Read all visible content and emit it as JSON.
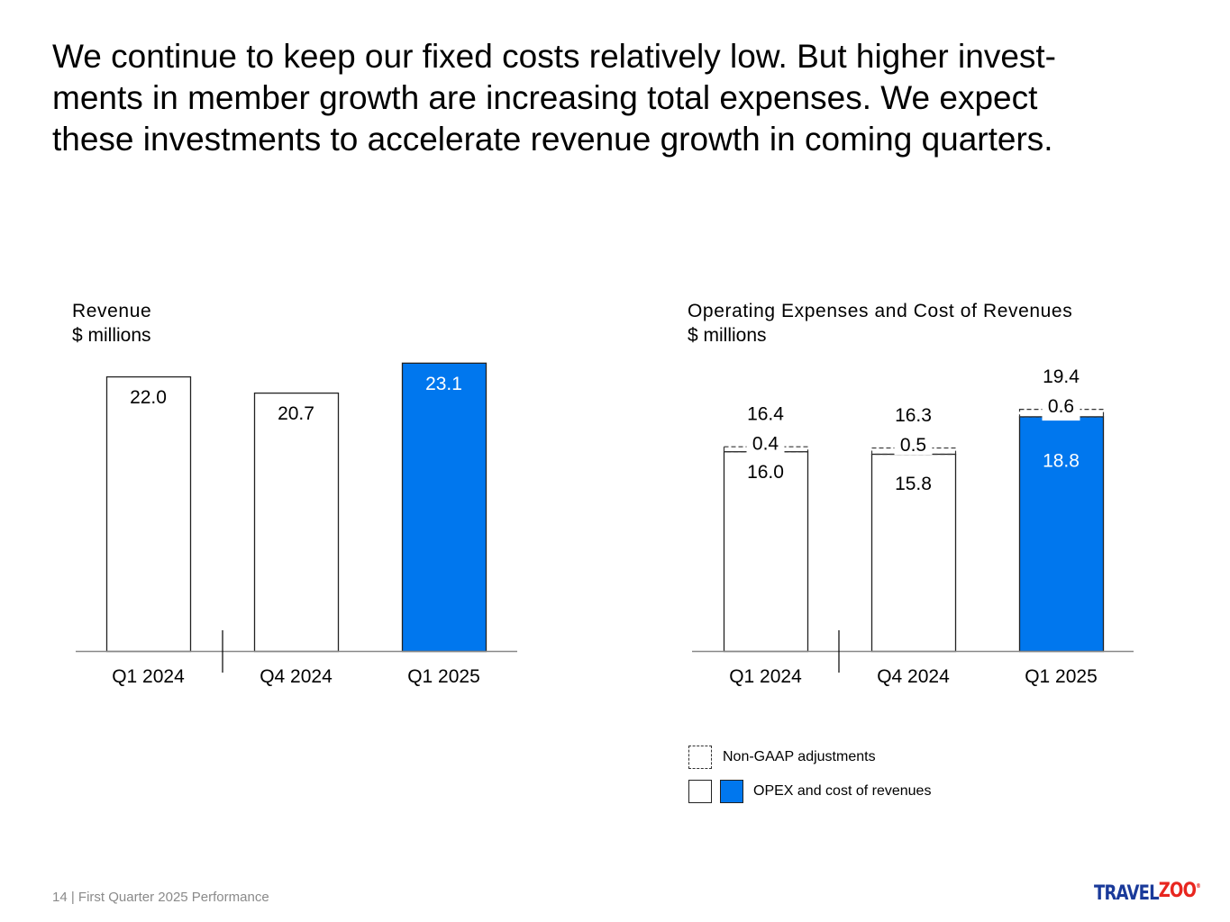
{
  "headline": {
    "lines": [
      "We continue to keep our fixed costs relatively low. But higher invest-",
      "ments in member growth are increasing total expenses. We expect",
      "these investments to accelerate revenue growth in coming quarters."
    ]
  },
  "colors": {
    "highlight": "#0077ee",
    "bar_outline": "#222222",
    "axis": "#888888"
  },
  "chart_data": [
    {
      "type": "bar",
      "title": "Revenue",
      "unit": "$ millions",
      "categories": [
        "Q1 2024",
        "Q4 2024",
        "Q1 2025"
      ],
      "values": [
        22.0,
        20.7,
        23.1
      ],
      "labels": [
        "22.0",
        "20.7",
        "23.1"
      ],
      "highlight": [
        false,
        false,
        true
      ],
      "xlabel": "",
      "ylabel": "",
      "ylim": [
        0,
        23.1
      ],
      "grid": false,
      "separator_after_index": 0
    },
    {
      "type": "bar",
      "stacked": true,
      "title": "Operating Expenses and Cost of Revenues",
      "unit": "$ millions",
      "categories": [
        "Q1 2024",
        "Q4 2024",
        "Q1 2025"
      ],
      "series": [
        {
          "name": "OPEX and cost of revenues",
          "values": [
            16.0,
            15.8,
            18.8
          ],
          "labels": [
            "16.0",
            "15.8",
            "18.8"
          ]
        },
        {
          "name": "Non-GAAP adjustments",
          "values": [
            0.4,
            0.5,
            0.6
          ],
          "labels": [
            "0.4",
            "0.5",
            "0.6"
          ]
        }
      ],
      "totals": [
        16.4,
        16.3,
        19.4
      ],
      "total_labels": [
        "16.4",
        "16.3",
        "19.4"
      ],
      "highlight": [
        false,
        false,
        true
      ],
      "xlabel": "",
      "ylabel": "",
      "grid": false,
      "legend": "bottom-left",
      "separator_after_index": 0
    }
  ],
  "legend": {
    "items": [
      {
        "label": "Non-GAAP adjustments",
        "style": "dashed"
      },
      {
        "label": "OPEX and cost of revenues",
        "style": "solid-white-and-blue"
      }
    ]
  },
  "footer": {
    "text": "14 | First Quarter 2025 Performance"
  },
  "logo": {
    "part1": "TRAVEL",
    "part2": "ZOO",
    "mark": "®"
  }
}
